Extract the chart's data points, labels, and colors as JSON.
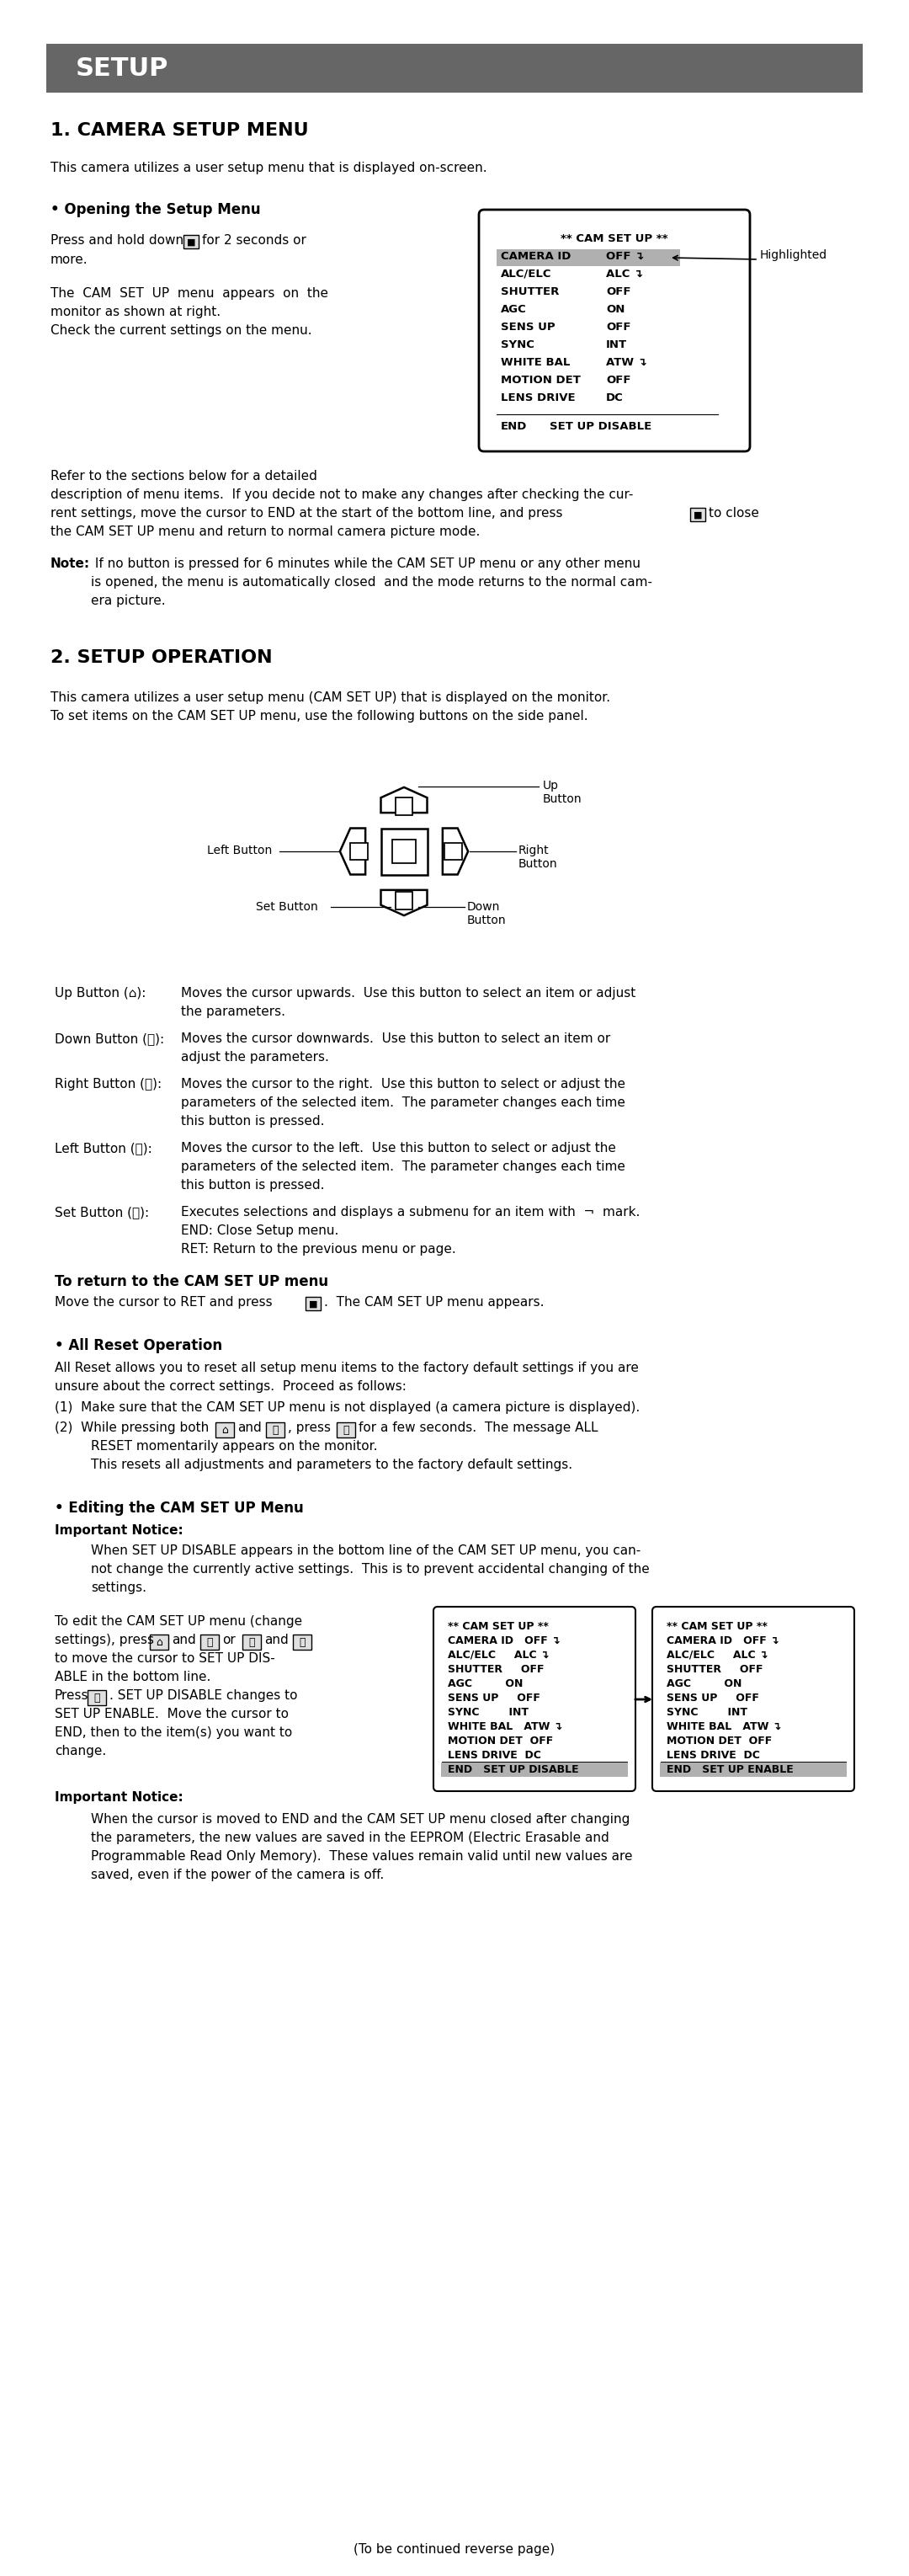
{
  "page_bg": "#ffffff",
  "header_bg": "#666666",
  "header_text": "SETUP",
  "section1_title": "1. CAMERA SETUP MENU",
  "section2_title": "2. SETUP OPERATION",
  "footer_text": "(To be continued reverse page)"
}
